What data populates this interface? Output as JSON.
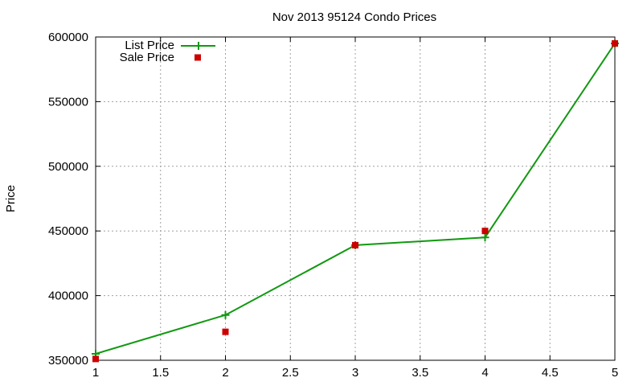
{
  "chart_data": {
    "type": "line",
    "title": "Nov 2013 95124 Condo Prices",
    "xlabel": "",
    "ylabel": "Price",
    "xlim": [
      1,
      5
    ],
    "ylim": [
      350000,
      600000
    ],
    "x_ticks": [
      1,
      1.5,
      2,
      2.5,
      3,
      3.5,
      4,
      4.5,
      5
    ],
    "y_ticks": [
      350000,
      400000,
      450000,
      500000,
      550000,
      600000
    ],
    "grid": true,
    "legend_position": "top-left",
    "series": [
      {
        "name": "List Price",
        "style": "line-with-plus-markers",
        "color": "#119911",
        "x": [
          1,
          2,
          3,
          4,
          5
        ],
        "y": [
          355000,
          385000,
          439000,
          445000,
          595000
        ]
      },
      {
        "name": "Sale Price",
        "style": "square-markers",
        "color": "#cc0000",
        "x": [
          1,
          2,
          3,
          4,
          5
        ],
        "y": [
          351000,
          372000,
          439000,
          450000,
          595000
        ]
      }
    ]
  }
}
